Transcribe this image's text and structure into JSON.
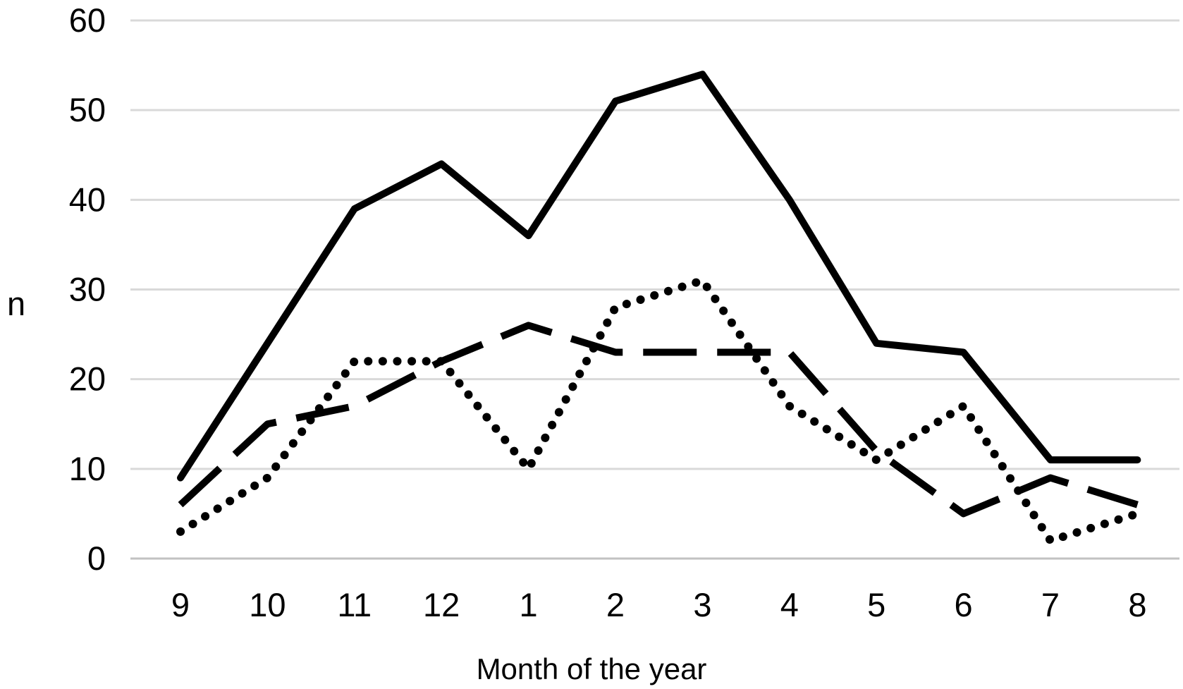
{
  "figure": {
    "background": "#ffffff",
    "text_color": "#000000",
    "gridline_color": "#d9d9d9",
    "baseline_color": "#c2c2c2",
    "line_color": "#000000"
  },
  "chart_data": {
    "type": "line",
    "title": "",
    "xlabel": "Month of the year",
    "ylabel": "n",
    "categories": [
      "9",
      "10",
      "11",
      "12",
      "1",
      "2",
      "3",
      "4",
      "5",
      "6",
      "7",
      "8"
    ],
    "yticks": [
      0,
      10,
      20,
      30,
      40,
      50,
      60
    ],
    "ylim": [
      0,
      60
    ],
    "grid": true,
    "legend_position": "none",
    "series": [
      {
        "name": "solid-line-series",
        "style": "solid",
        "values": [
          9,
          24,
          39,
          44,
          36,
          51,
          54,
          40,
          24,
          23,
          11,
          11
        ]
      },
      {
        "name": "dashed-line-series",
        "style": "dashed",
        "values": [
          6,
          15,
          17,
          22,
          26,
          23,
          23,
          23,
          12,
          5,
          9,
          6
        ]
      },
      {
        "name": "dotted-line-series",
        "style": "dotted",
        "values": [
          3,
          9,
          22,
          22,
          10,
          28,
          31,
          17,
          11,
          17,
          2,
          5
        ]
      }
    ]
  }
}
